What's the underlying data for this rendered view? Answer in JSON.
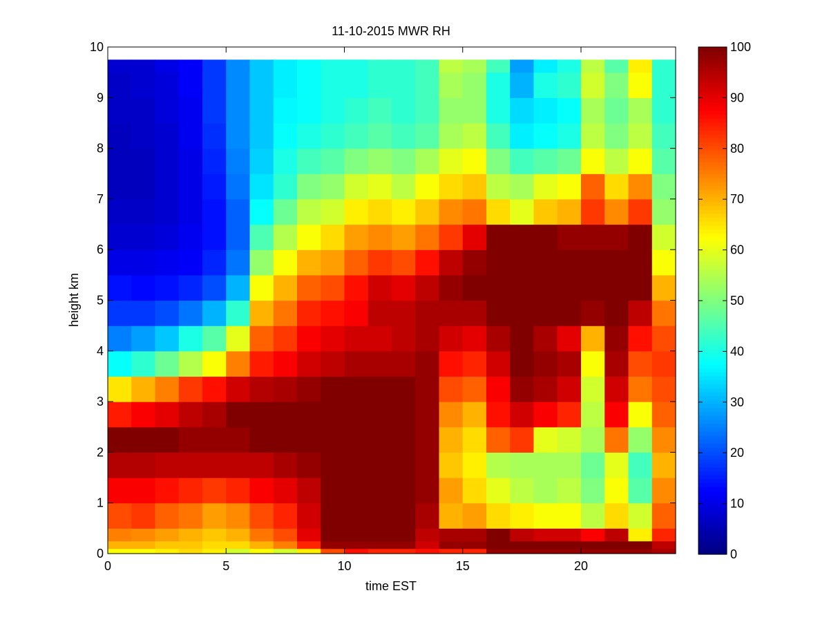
{
  "chart_data": {
    "type": "heatmap",
    "title": "11-10-2015 MWR RH",
    "xlabel": "time EST",
    "ylabel": "height km",
    "xlim": [
      0,
      24
    ],
    "ylim": [
      0,
      10
    ],
    "x_ticks": [
      0,
      5,
      10,
      15,
      20
    ],
    "y_ticks": [
      0,
      1,
      2,
      3,
      4,
      5,
      6,
      7,
      8,
      9,
      10
    ],
    "colorbar": {
      "colormap": "jet",
      "range": [
        0,
        100
      ],
      "ticks": [
        0,
        10,
        20,
        30,
        40,
        50,
        60,
        70,
        80,
        90,
        100
      ]
    },
    "x_columns": [
      0,
      1,
      2,
      3,
      4,
      5,
      6,
      7,
      8,
      9,
      10,
      11,
      12,
      13,
      14,
      15,
      16,
      17,
      18,
      19,
      20,
      21,
      22,
      23
    ],
    "column_width": 1,
    "height_levels_km": [
      0.0,
      0.1,
      0.25,
      0.5,
      1.0,
      1.5,
      2.0,
      2.5,
      3.0,
      3.5,
      4.0,
      4.5,
      5.0,
      5.5,
      6.0,
      6.5,
      7.0,
      7.5,
      8.0,
      8.5,
      9.0,
      9.5,
      9.75
    ],
    "rh_profiles": [
      [
        62,
        70,
        75,
        80,
        88,
        95,
        100,
        85,
        65,
        38,
        25,
        18,
        14,
        10,
        8,
        7,
        6,
        6,
        6,
        7,
        7,
        8,
        8
      ],
      [
        62,
        70,
        74,
        82,
        88,
        95,
        100,
        88,
        70,
        42,
        28,
        18,
        13,
        10,
        8,
        7,
        6,
        6,
        7,
        7,
        8,
        8,
        8
      ],
      [
        64,
        68,
        72,
        78,
        86,
        94,
        100,
        90,
        75,
        48,
        32,
        20,
        14,
        11,
        9,
        8,
        8,
        8,
        8,
        9,
        9,
        10,
        10
      ],
      [
        66,
        68,
        70,
        76,
        84,
        94,
        98,
        94,
        82,
        55,
        40,
        24,
        16,
        12,
        11,
        10,
        10,
        10,
        11,
        11,
        12,
        12,
        12
      ],
      [
        64,
        66,
        68,
        72,
        82,
        94,
        98,
        96,
        86,
        62,
        46,
        30,
        20,
        16,
        14,
        14,
        15,
        16,
        17,
        18,
        18,
        18,
        18
      ],
      [
        58,
        66,
        70,
        74,
        84,
        94,
        98,
        100,
        92,
        75,
        60,
        42,
        30,
        24,
        22,
        22,
        24,
        25,
        26,
        26,
        26,
        26,
        26
      ],
      [
        62,
        70,
        76,
        80,
        88,
        94,
        100,
        100,
        95,
        85,
        78,
        70,
        62,
        52,
        45,
        38,
        35,
        33,
        32,
        32,
        32,
        32,
        32
      ],
      [
        58,
        75,
        80,
        84,
        90,
        96,
        100,
        100,
        96,
        88,
        82,
        76,
        70,
        62,
        55,
        48,
        42,
        40,
        38,
        37,
        36,
        36,
        36
      ],
      [
        64,
        84,
        90,
        92,
        94,
        98,
        100,
        100,
        98,
        92,
        88,
        84,
        78,
        70,
        62,
        56,
        50,
        44,
        40,
        38,
        38,
        38,
        38
      ],
      [
        80,
        98,
        100,
        100,
        100,
        100,
        100,
        100,
        100,
        94,
        90,
        86,
        80,
        72,
        66,
        58,
        52,
        46,
        42,
        40,
        40,
        40,
        40
      ],
      [
        86,
        98,
        100,
        100,
        100,
        100,
        100,
        100,
        100,
        96,
        92,
        88,
        86,
        78,
        72,
        64,
        58,
        50,
        44,
        42,
        40,
        40,
        40
      ],
      [
        84,
        98,
        100,
        100,
        100,
        100,
        100,
        100,
        100,
        96,
        92,
        94,
        92,
        82,
        74,
        66,
        60,
        52,
        46,
        44,
        42,
        42,
        42
      ],
      [
        84,
        98,
        100,
        100,
        100,
        100,
        100,
        100,
        100,
        96,
        94,
        94,
        90,
        80,
        72,
        64,
        56,
        50,
        44,
        42,
        42,
        42,
        42
      ],
      [
        86,
        92,
        94,
        96,
        98,
        98,
        98,
        98,
        98,
        98,
        96,
        96,
        94,
        86,
        76,
        68,
        62,
        54,
        46,
        44,
        44,
        44,
        44
      ],
      [
        84,
        98,
        96,
        70,
        72,
        68,
        70,
        74,
        80,
        86,
        92,
        96,
        98,
        94,
        82,
        74,
        66,
        60,
        54,
        52,
        54,
        56,
        56
      ],
      [
        84,
        98,
        96,
        72,
        66,
        64,
        66,
        70,
        78,
        84,
        90,
        96,
        100,
        98,
        90,
        76,
        68,
        62,
        56,
        52,
        52,
        54,
        54
      ],
      [
        98,
        100,
        100,
        66,
        60,
        55,
        78,
        86,
        88,
        92,
        96,
        100,
        100,
        100,
        100,
        66,
        56,
        50,
        44,
        40,
        40,
        44,
        44
      ],
      [
        98,
        100,
        94,
        64,
        56,
        54,
        82,
        92,
        98,
        100,
        100,
        100,
        100,
        100,
        100,
        60,
        54,
        44,
        36,
        34,
        30,
        28,
        28
      ],
      [
        98,
        100,
        92,
        62,
        54,
        54,
        60,
        88,
        96,
        98,
        96,
        100,
        100,
        100,
        100,
        68,
        60,
        46,
        38,
        36,
        40,
        36,
        36
      ],
      [
        98,
        100,
        92,
        62,
        56,
        54,
        58,
        84,
        92,
        96,
        90,
        100,
        100,
        100,
        98,
        70,
        62,
        48,
        40,
        38,
        42,
        40,
        40
      ],
      [
        98,
        100,
        88,
        56,
        50,
        48,
        54,
        56,
        58,
        62,
        70,
        98,
        100,
        100,
        98,
        82,
        78,
        62,
        56,
        54,
        58,
        56,
        56
      ],
      [
        98,
        100,
        94,
        66,
        62,
        60,
        76,
        88,
        92,
        96,
        98,
        100,
        100,
        100,
        98,
        74,
        66,
        56,
        50,
        48,
        50,
        46,
        46
      ],
      [
        98,
        100,
        64,
        58,
        46,
        44,
        52,
        62,
        76,
        80,
        86,
        94,
        100,
        100,
        100,
        82,
        74,
        62,
        56,
        54,
        62,
        64,
        64
      ],
      [
        96,
        94,
        84,
        78,
        74,
        70,
        74,
        78,
        80,
        82,
        80,
        76,
        70,
        62,
        58,
        52,
        50,
        46,
        44,
        42,
        42,
        42,
        42
      ]
    ]
  }
}
